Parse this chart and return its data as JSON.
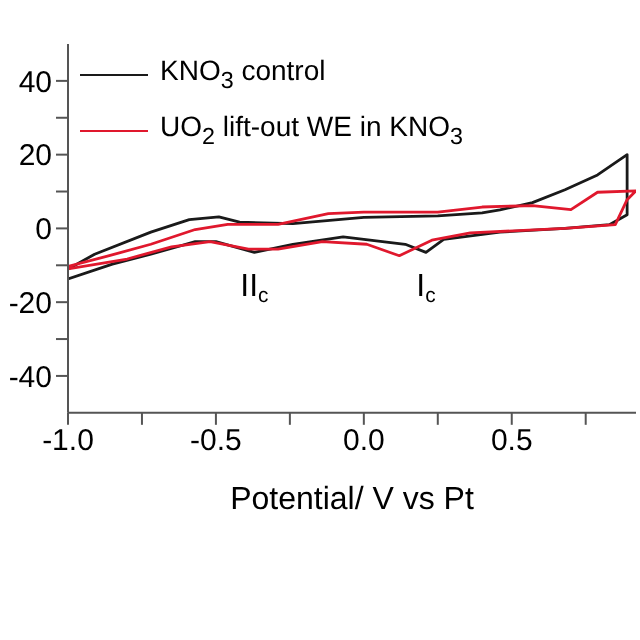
{
  "chart_data": {
    "type": "line",
    "xlabel": "Potential/ V vs Pt",
    "xlim": [
      -1.0,
      0.92
    ],
    "xticks": [
      {
        "value": -1.0,
        "label": "-1.0"
      },
      {
        "value": -0.75,
        "label": null
      },
      -0.5,
      {
        "value": -0.25,
        "label": null
      },
      {
        "value": 0.0,
        "label": "0.0"
      },
      {
        "value": 0.25,
        "label": null
      },
      0.5,
      {
        "value": 0.75,
        "label": null
      }
    ],
    "ylim": [
      -50,
      50
    ],
    "yticks": [
      -40,
      {
        "value": -30,
        "label": null
      },
      -20,
      {
        "value": -10,
        "label": null
      },
      0,
      {
        "value": 10,
        "label": null
      },
      20,
      {
        "value": 30,
        "label": null
      },
      40
    ],
    "grid": false,
    "legend": "top left",
    "marker": "none",
    "line_style": "solid",
    "annotations": [
      {
        "text": "II$_{c}$",
        "x": -0.37,
        "y": -6.5
      },
      {
        "text": "I$_{c}$",
        "x": 0.21,
        "y": -6.5
      }
    ],
    "series": [
      {
        "name": "KNO$_{3}$ control",
        "color": "#1a1a1a",
        "x": [
          -1.0,
          -0.91,
          -0.72,
          -0.59,
          -0.49,
          -0.42,
          -0.24,
          0.0,
          0.25,
          0.4,
          0.46,
          0.57,
          0.68,
          0.79,
          0.89,
          0.89,
          0.83,
          0.68,
          0.46,
          0.27,
          0.21,
          0.14,
          -0.07,
          -0.24,
          -0.37,
          -0.5,
          -0.57,
          -0.72,
          -0.85,
          -1.0
        ],
        "values": [
          -11,
          -7,
          -1,
          2.4,
          3.1,
          1.7,
          1.3,
          3.0,
          3.4,
          4.2,
          5,
          7,
          10.5,
          14.5,
          20,
          3.7,
          1,
          0,
          -1,
          -3,
          -6.5,
          -4.3,
          -2.3,
          -4.3,
          -6.5,
          -3.6,
          -3.6,
          -7,
          -9.7,
          -13.7
        ]
      },
      {
        "name": "UO$_{2}$ lift-out WE in KNO$_{3}$",
        "color": "#e0182d",
        "x": [
          -1.0,
          -0.87,
          -0.72,
          -0.57,
          -0.46,
          -0.29,
          -0.12,
          0.0,
          0.25,
          0.4,
          0.57,
          0.7,
          0.79,
          0.92,
          0.89,
          0.85,
          0.68,
          0.36,
          0.23,
          0.12,
          0.01,
          -0.14,
          -0.29,
          -0.39,
          -0.52,
          -0.65,
          -0.8,
          -1.0
        ],
        "values": [
          -10.3,
          -7.6,
          -4.3,
          -0.3,
          1.1,
          1.1,
          4,
          4.4,
          4.4,
          5.8,
          6.2,
          5.1,
          9.8,
          10.2,
          7.8,
          1,
          0,
          -1.2,
          -3.2,
          -7.4,
          -4.3,
          -3.6,
          -5.6,
          -5.6,
          -3.6,
          -5,
          -8.3,
          -11
        ]
      }
    ]
  }
}
